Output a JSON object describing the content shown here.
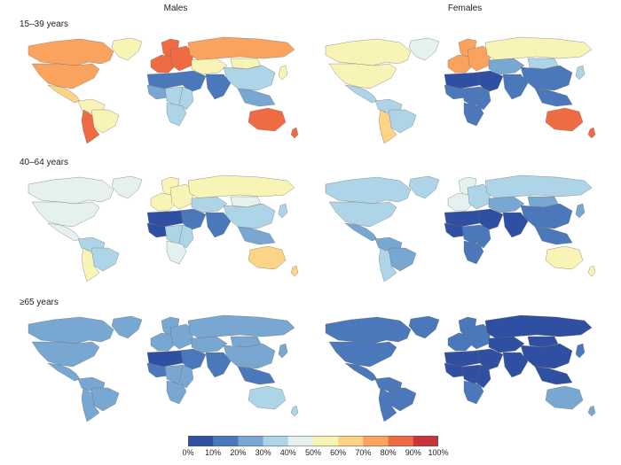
{
  "columns": [
    {
      "id": "males",
      "label": "Males"
    },
    {
      "id": "females",
      "label": "Females"
    }
  ],
  "rows": [
    {
      "id": "r1",
      "label": "15–39 years"
    },
    {
      "id": "r2",
      "label": "40–64 years"
    },
    {
      "id": "r3",
      "label": "≥65 years"
    }
  ],
  "colors": {
    "0": "#2f4fa2",
    "1": "#4a78bb",
    "2": "#78a7d2",
    "3": "#aed4e8",
    "4": "#e4f1ee",
    "5": "#f8f4b6",
    "6": "#fcd487",
    "7": "#f9a35f",
    "8": "#ee6b43",
    "9": "#c9333a"
  },
  "legend": {
    "ticks": [
      "0%",
      "10%",
      "20%",
      "30%",
      "40%",
      "50%",
      "60%",
      "70%",
      "80%",
      "90%",
      "100%"
    ]
  },
  "map_values": {
    "males": {
      "r1": {
        "north_america": 7,
        "canada": 7,
        "greenland": 5,
        "mexico_central": 6,
        "south_america_north": 5,
        "brazil": 5,
        "south_america_south": 8,
        "scandinavia": 8,
        "western_europe": 8,
        "eastern_europe": 8,
        "russia": 7,
        "north_africa": 1,
        "west_africa": 2,
        "central_africa": 3,
        "east_africa": 3,
        "southern_africa": 3,
        "middle_east": 1,
        "central_asia": 5,
        "south_asia": 1,
        "china": 3,
        "mongolia": 5,
        "southeast_asia": 2,
        "japan": 5,
        "australia": 8,
        "new_zealand": 8
      },
      "r2": {
        "north_america": 4,
        "canada": 4,
        "greenland": 4,
        "mexico_central": 4,
        "south_america_north": 3,
        "brazil": 3,
        "south_america_south": 5,
        "scandinavia": 5,
        "western_europe": 5,
        "eastern_europe": 5,
        "russia": 5,
        "north_africa": 0,
        "west_africa": 0,
        "central_africa": 3,
        "east_africa": 3,
        "southern_africa": 4,
        "middle_east": 1,
        "central_asia": 3,
        "south_asia": 1,
        "china": 3,
        "mongolia": 4,
        "southeast_asia": 2,
        "japan": 3,
        "australia": 6,
        "new_zealand": 6
      },
      "r3": {
        "north_america": 2,
        "canada": 2,
        "greenland": 2,
        "mexico_central": 2,
        "south_america_north": 2,
        "brazil": 2,
        "south_america_south": 2,
        "scandinavia": 2,
        "western_europe": 2,
        "eastern_europe": 2,
        "russia": 2,
        "north_africa": 0,
        "west_africa": 1,
        "central_africa": 2,
        "east_africa": 2,
        "southern_africa": 2,
        "middle_east": 1,
        "central_asia": 2,
        "south_asia": 1,
        "china": 2,
        "mongolia": 2,
        "southeast_asia": 1,
        "japan": 2,
        "australia": 3,
        "new_zealand": 3
      }
    },
    "females": {
      "r1": {
        "north_america": 5,
        "canada": 5,
        "greenland": 4,
        "mexico_central": 3,
        "south_america_north": 3,
        "brazil": 3,
        "south_america_south": 6,
        "scandinavia": 7,
        "western_europe": 7,
        "eastern_europe": 7,
        "russia": 5,
        "north_africa": 0,
        "west_africa": 1,
        "central_africa": 1,
        "east_africa": 1,
        "southern_africa": 1,
        "middle_east": 0,
        "central_asia": 2,
        "south_asia": 1,
        "china": 1,
        "mongolia": 3,
        "southeast_asia": 1,
        "japan": 3,
        "australia": 8,
        "new_zealand": 8
      },
      "r2": {
        "north_america": 3,
        "canada": 3,
        "greenland": 3,
        "mexico_central": 2,
        "south_america_north": 2,
        "brazil": 2,
        "south_america_south": 3,
        "scandinavia": 4,
        "western_europe": 4,
        "eastern_europe": 3,
        "russia": 3,
        "north_africa": 0,
        "west_africa": 0,
        "central_africa": 1,
        "east_africa": 1,
        "southern_africa": 1,
        "middle_east": 0,
        "central_asia": 2,
        "south_asia": 0,
        "china": 1,
        "mongolia": 2,
        "southeast_asia": 1,
        "japan": 2,
        "australia": 5,
        "new_zealand": 5
      },
      "r3": {
        "north_america": 1,
        "canada": 1,
        "greenland": 1,
        "mexico_central": 1,
        "south_america_north": 1,
        "brazil": 1,
        "south_america_south": 1,
        "scandinavia": 1,
        "western_europe": 1,
        "eastern_europe": 1,
        "russia": 0,
        "north_africa": 0,
        "west_africa": 0,
        "central_africa": 0,
        "east_africa": 0,
        "southern_africa": 1,
        "middle_east": 0,
        "central_asia": 0,
        "south_asia": 0,
        "china": 0,
        "mongolia": 0,
        "southeast_asia": 0,
        "japan": 1,
        "australia": 2,
        "new_zealand": 2
      }
    }
  }
}
